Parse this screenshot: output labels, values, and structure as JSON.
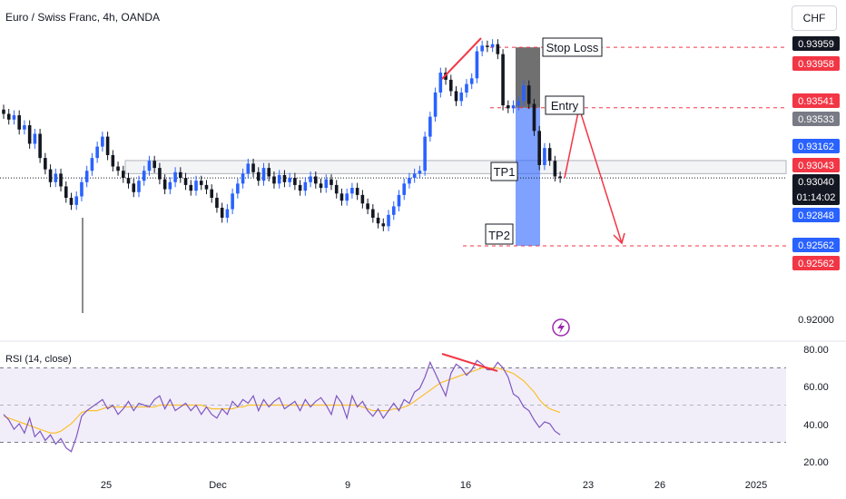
{
  "header": {
    "title": "Euro / Swiss Franc, 4h, OANDA",
    "currency": "CHF"
  },
  "rsi": {
    "label": "RSI (14, close)"
  },
  "colors": {
    "up": "#2962ff",
    "down": "#131722",
    "red": "#f23645",
    "rsi_line": "#7e57c2",
    "rsi_ma": "#fbc02d",
    "rsi_band": "#ede7f6",
    "stop_zone": "#616161",
    "target_zone": "#2962ff"
  },
  "annotations": {
    "stop_loss": "Stop Loss",
    "entry": "Entry",
    "tp1": "TP1",
    "tp2": "TP2"
  },
  "icons": {
    "flash": "lightning-bolt-icon"
  },
  "chart_data": [
    {
      "type": "candlestick",
      "timeframe": "4h",
      "x_ticks": [
        "25",
        "Dec",
        "9",
        "16",
        "23",
        "26",
        "2025"
      ],
      "y_ticks": [
        "0.92000"
      ],
      "price_labels": [
        {
          "text": "0.93959",
          "price": 0.93959,
          "style": "dark"
        },
        {
          "text": "0.93958",
          "price": 0.93958,
          "style": "red"
        },
        {
          "text": "0.93541",
          "price": 0.93541,
          "style": "red"
        },
        {
          "text": "0.93533",
          "price": 0.93533,
          "style": "grey"
        },
        {
          "text": "0.93162",
          "price": 0.93162,
          "style": "blue"
        },
        {
          "text": "0.93043",
          "price": 0.93043,
          "style": "red"
        },
        {
          "text": "0.93040",
          "price": 0.9304,
          "style": "black",
          "sub": "01:14:02"
        },
        {
          "text": "0.92848",
          "price": 0.92848,
          "style": "blue"
        },
        {
          "text": "0.92562",
          "price": 0.92562,
          "style": "blue"
        },
        {
          "text": "0.92562",
          "price": 0.92562,
          "style": "red"
        }
      ],
      "levels": {
        "stop_loss": 0.93958,
        "entry": 0.93533,
        "current": 0.9304,
        "tp2": 0.92562,
        "resistance_top": 0.93162,
        "resistance_bottom": 0.9307
      },
      "projection": [
        0.9304,
        0.93533,
        0.92562
      ],
      "closes": [
        0.9349,
        0.9345,
        0.9348,
        0.9338,
        0.9341,
        0.9328,
        0.9335,
        0.9318,
        0.931,
        0.9301,
        0.9307,
        0.9298,
        0.929,
        0.9285,
        0.9291,
        0.9301,
        0.9309,
        0.9318,
        0.9326,
        0.9333,
        0.932,
        0.9312,
        0.9309,
        0.9304,
        0.93,
        0.9294,
        0.9302,
        0.9309,
        0.9316,
        0.9311,
        0.9303,
        0.9296,
        0.9301,
        0.9308,
        0.9304,
        0.9299,
        0.9295,
        0.9302,
        0.9299,
        0.9296,
        0.929,
        0.9283,
        0.9276,
        0.9282,
        0.9293,
        0.93,
        0.9307,
        0.9314,
        0.9308,
        0.9302,
        0.9311,
        0.9305,
        0.93,
        0.9306,
        0.9301,
        0.9304,
        0.9299,
        0.9295,
        0.9301,
        0.9305,
        0.93,
        0.9297,
        0.9303,
        0.9299,
        0.9293,
        0.9288,
        0.9293,
        0.9297,
        0.9292,
        0.9286,
        0.9282,
        0.9276,
        0.9272,
        0.927,
        0.9278,
        0.9284,
        0.9292,
        0.93,
        0.9304,
        0.9307,
        0.9309,
        0.9333,
        0.9347,
        0.9364,
        0.9378,
        0.9373,
        0.9365,
        0.9358,
        0.9364,
        0.937,
        0.9374,
        0.9393,
        0.9397,
        0.9396,
        0.9398,
        0.9391,
        0.9355,
        0.9353,
        0.9355,
        0.9358,
        0.9369,
        0.9356,
        0.9337,
        0.9313,
        0.9325,
        0.9316,
        0.9305,
        0.9304
      ],
      "rsi": {
        "ylim": [
          20,
          80
        ],
        "ticks": [
          "80.00",
          "60.00",
          "40.00",
          "20.00"
        ],
        "upper_band": 70,
        "lower_band": 30,
        "midline": 50
      },
      "rsi_values": [
        45,
        42,
        37,
        40,
        35,
        43,
        33,
        36,
        31,
        34,
        29,
        32,
        27,
        25,
        33,
        44,
        47,
        49,
        51,
        53,
        48,
        50,
        45,
        48,
        52,
        47,
        51,
        50,
        49,
        53,
        55,
        48,
        53,
        47,
        49,
        51,
        47,
        50,
        45,
        49,
        45,
        43,
        48,
        45,
        52,
        49,
        53,
        51,
        55,
        47,
        53,
        49,
        52,
        54,
        48,
        50,
        52,
        47,
        53,
        49,
        52,
        54,
        50,
        45,
        55,
        51,
        43,
        55,
        49,
        52,
        47,
        44,
        48,
        43,
        47,
        51,
        47,
        53,
        51,
        57,
        59,
        65,
        73,
        67,
        61,
        55,
        67,
        72,
        70,
        66,
        69,
        74,
        72,
        69,
        69,
        73,
        70,
        65,
        56,
        54,
        49,
        47,
        42,
        38,
        41,
        40,
        36,
        34
      ],
      "rsi_ma_values": [
        44,
        43,
        42,
        41,
        40,
        39,
        38,
        37,
        36,
        35,
        35,
        36,
        38,
        40,
        43,
        46,
        47,
        47,
        47,
        48,
        49,
        49,
        49,
        49,
        49,
        49,
        49,
        49,
        49,
        49,
        50,
        50,
        50,
        50,
        50,
        50,
        50,
        50,
        50,
        49,
        48,
        48,
        48,
        48,
        48,
        49,
        49,
        50,
        50,
        50,
        50,
        50,
        50,
        50,
        50,
        50,
        50,
        50,
        50,
        50,
        50,
        50,
        50,
        50,
        50,
        50,
        50,
        50,
        50,
        49,
        48,
        47,
        47,
        47,
        47,
        48,
        48,
        49,
        50,
        52,
        54,
        56,
        58,
        60,
        62,
        63,
        64,
        65,
        66,
        67,
        68,
        69,
        70,
        70,
        70,
        70,
        69,
        68,
        67,
        65,
        63,
        60,
        57,
        53,
        50,
        48,
        47,
        46
      ]
    }
  ]
}
